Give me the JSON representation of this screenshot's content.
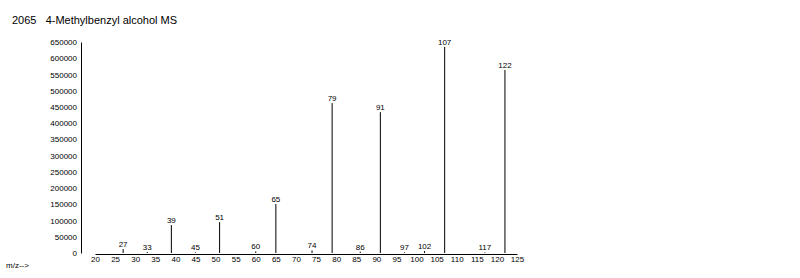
{
  "chart_data": {
    "type": "bar",
    "title": "2065   4-Methylbenzyl alcohol MS",
    "x_label": "m/z-->",
    "x": [
      27,
      33,
      39,
      45,
      51,
      60,
      65,
      74,
      79,
      86,
      91,
      97,
      102,
      107,
      117,
      122
    ],
    "values": [
      12000,
      3000,
      86000,
      2000,
      95000,
      5000,
      151000,
      8000,
      462000,
      4000,
      434000,
      2000,
      6000,
      635000,
      2000,
      564000
    ],
    "color": "#000000",
    "xlim": [
      20,
      125
    ],
    "xticks": [
      20,
      25,
      30,
      35,
      40,
      45,
      50,
      55,
      60,
      65,
      70,
      75,
      80,
      85,
      90,
      95,
      100,
      105,
      110,
      115,
      120,
      125
    ],
    "ylim": [
      0,
      650000
    ],
    "yticks": [
      0,
      50000,
      100000,
      150000,
      200000,
      250000,
      300000,
      350000,
      400000,
      450000,
      500000,
      550000,
      600000,
      650000
    ]
  }
}
